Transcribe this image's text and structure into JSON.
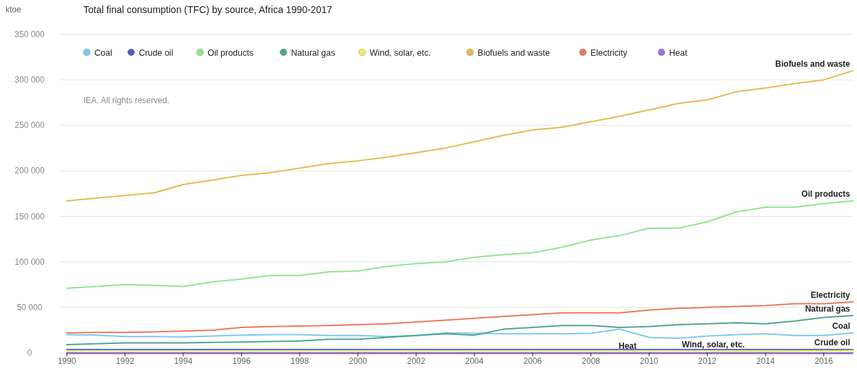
{
  "chart_data": {
    "type": "line",
    "title": "Total final consumption (TFC) by source, Africa 1990-2017",
    "ylabel": "ktoe",
    "annotations": [
      "IEA. All rights reserved."
    ],
    "x": [
      1990,
      1991,
      1992,
      1993,
      1994,
      1995,
      1996,
      1997,
      1998,
      1999,
      2000,
      2001,
      2002,
      2003,
      2004,
      2005,
      2006,
      2007,
      2008,
      2009,
      2010,
      2011,
      2012,
      2013,
      2014,
      2015,
      2016,
      2017
    ],
    "series": [
      {
        "name": "Coal",
        "color": "#7cc8ee",
        "values": [
          20000,
          19500,
          18000,
          18000,
          17500,
          18500,
          19500,
          20000,
          20000,
          19000,
          19000,
          18000,
          19000,
          22000,
          21500,
          21000,
          21000,
          21000,
          21500,
          26000,
          17000,
          16000,
          18500,
          20000,
          21000,
          19000,
          19000,
          22000
        ]
      },
      {
        "name": "Crude oil",
        "color": "#4a5fc1",
        "values": [
          3500,
          3500,
          3500,
          3500,
          3500,
          3500,
          3500,
          3500,
          3500,
          3500,
          3500,
          3500,
          3500,
          3500,
          3500,
          3500,
          3500,
          3500,
          3500,
          3500,
          3500,
          3500,
          3500,
          3500,
          3500,
          3500,
          3500,
          3500
        ]
      },
      {
        "name": "Oil products",
        "color": "#90e58c",
        "values": [
          71000,
          73000,
          75000,
          74000,
          73000,
          78000,
          81000,
          85000,
          85000,
          89000,
          90000,
          95000,
          98000,
          100000,
          105000,
          108000,
          110000,
          116000,
          124000,
          129000,
          137000,
          137000,
          144000,
          155000,
          160000,
          160000,
          164000,
          167000
        ]
      },
      {
        "name": "Natural gas",
        "color": "#4ea58a",
        "values": [
          9000,
          10000,
          11000,
          11000,
          11000,
          11500,
          12000,
          12500,
          13000,
          15000,
          15000,
          17000,
          19000,
          21000,
          19500,
          26000,
          28000,
          30000,
          30000,
          28000,
          29000,
          31000,
          32000,
          33000,
          32000,
          35000,
          39000,
          41000
        ]
      },
      {
        "name": "Wind, solar, etc.",
        "color": "#f3ec5a",
        "values": [
          1200,
          1200,
          1200,
          1200,
          1200,
          1200,
          1200,
          1200,
          1200,
          1200,
          1200,
          1200,
          1200,
          1200,
          1200,
          1200,
          1200,
          1200,
          1200,
          1200,
          1200,
          1200,
          1200,
          1500,
          1500,
          1800,
          2000,
          2500
        ]
      },
      {
        "name": "Biofuels and waste",
        "color": "#e4b94e",
        "values": [
          167000,
          170000,
          173000,
          176000,
          185000,
          190000,
          195000,
          198000,
          203000,
          208000,
          211000,
          215000,
          220000,
          225000,
          232000,
          239000,
          245000,
          248000,
          254000,
          260000,
          267000,
          274000,
          278000,
          287000,
          291000,
          296000,
          300000,
          310000
        ]
      },
      {
        "name": "Electricity",
        "color": "#e9785a",
        "values": [
          22000,
          22500,
          22500,
          23000,
          24000,
          25000,
          28000,
          29000,
          29500,
          30000,
          31000,
          32000,
          34000,
          36000,
          38000,
          40000,
          42000,
          44000,
          44000,
          44000,
          47000,
          49000,
          50000,
          51000,
          52000,
          54000,
          54000,
          56000
        ]
      },
      {
        "name": "Heat",
        "color": "#9b6fe0",
        "values": [
          0,
          0,
          0,
          0,
          0,
          0,
          0,
          0,
          0,
          0,
          0,
          0,
          0,
          0,
          0,
          0,
          0,
          0,
          0,
          0,
          0,
          0,
          0,
          0,
          0,
          0,
          0,
          0
        ]
      }
    ],
    "xlim": [
      1990,
      2017
    ],
    "xticks": [
      1990,
      1992,
      1994,
      1996,
      1998,
      2000,
      2002,
      2004,
      2006,
      2008,
      2010,
      2012,
      2014,
      2016
    ],
    "ylim": [
      0,
      350000
    ],
    "yticks": [
      {
        "value": 0,
        "label": "0"
      },
      {
        "value": 50000,
        "label": "50 000"
      },
      {
        "value": 100000,
        "label": "100 000"
      },
      {
        "value": 150000,
        "label": "150 000"
      },
      {
        "value": 200000,
        "label": "200 000"
      },
      {
        "value": 250000,
        "label": "250 000"
      },
      {
        "value": 300000,
        "label": "300 000"
      },
      {
        "value": 350000,
        "label": "350 000"
      }
    ],
    "grid": "y",
    "legend": "top left",
    "marker": "none",
    "line_style": "solid"
  }
}
